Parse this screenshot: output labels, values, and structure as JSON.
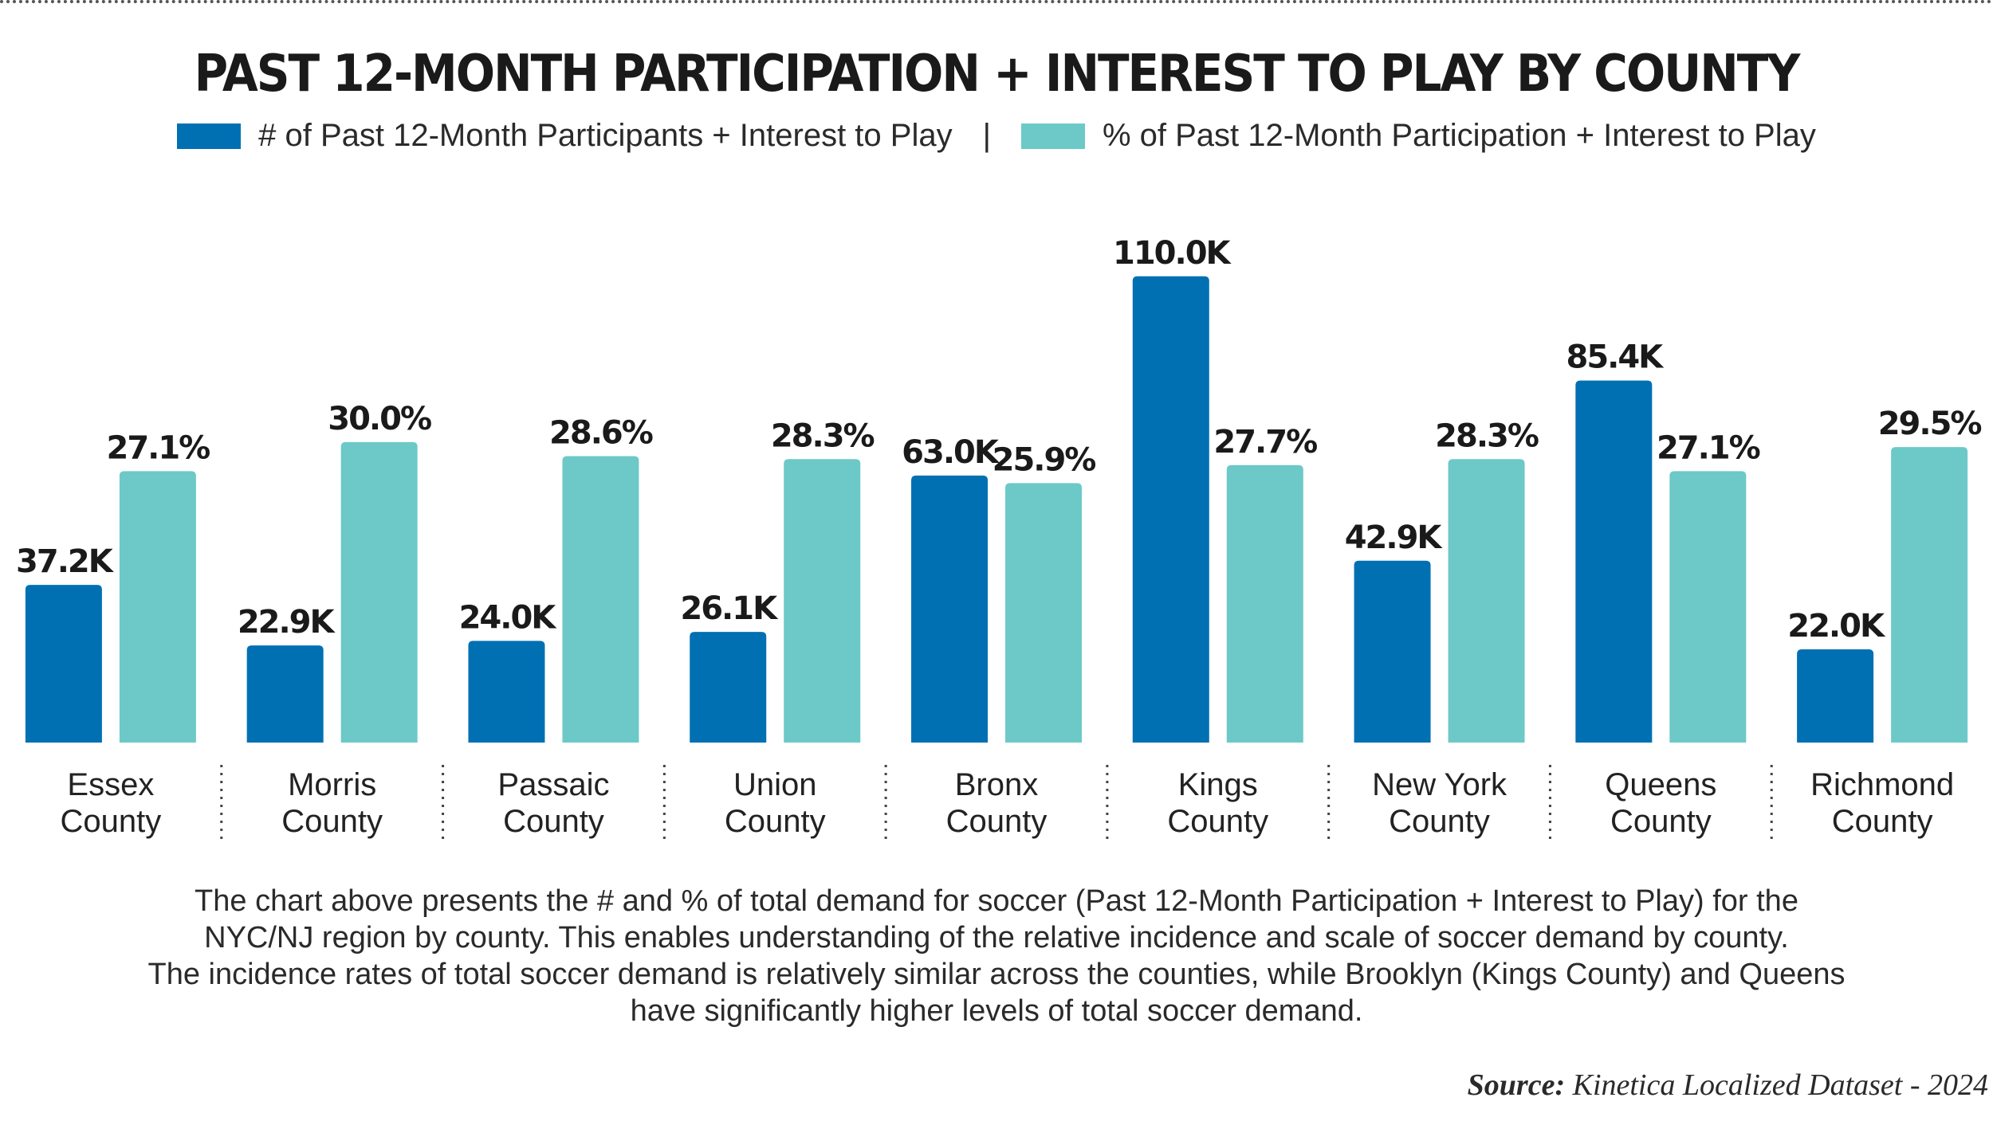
{
  "chart_data": {
    "type": "bar",
    "title": "PAST 12-MONTH PARTICIPATION + INTEREST TO PLAY BY COUNTY",
    "categories": [
      [
        "Essex",
        "County"
      ],
      [
        "Morris",
        "County"
      ],
      [
        "Passaic",
        "County"
      ],
      [
        "Union",
        "County"
      ],
      [
        "Bronx",
        "County"
      ],
      [
        "Kings",
        "County"
      ],
      [
        "New York",
        "County"
      ],
      [
        "Queens",
        "County"
      ],
      [
        "Richmond",
        "County"
      ]
    ],
    "series": [
      {
        "name": "# of Past 12-Month Participants + Interest to Play",
        "values": [
          37.2,
          22.9,
          24.0,
          26.1,
          63.0,
          110.0,
          42.9,
          85.4,
          22.0
        ],
        "labels": [
          "37.2K",
          "22.9K",
          "24.0K",
          "26.1K",
          "63.0K",
          "110.0K",
          "42.9K",
          "85.4K",
          "22.0K"
        ],
        "unit": "thousands",
        "color": "#0070b3"
      },
      {
        "name": "% of Past 12-Month Participation + Interest to Play",
        "values": [
          27.1,
          30.0,
          28.6,
          28.3,
          25.9,
          27.7,
          28.3,
          27.1,
          29.5
        ],
        "labels": [
          "27.1%",
          "30.0%",
          "28.6%",
          "28.3%",
          "25.9%",
          "27.7%",
          "28.3%",
          "27.1%",
          "29.5%"
        ],
        "unit": "percent",
        "color": "#6cc9c8"
      }
    ],
    "legend_separator": "|",
    "legend_position": "top-center",
    "grid": false
  },
  "note_lines": [
    "The chart above presents the # and % of total demand for soccer (Past 12-Month Participation + Interest to Play) for the",
    "NYC/NJ region by county. This enables understanding of the relative incidence and scale of soccer demand by county.",
    "The incidence rates of total soccer demand is relatively similar across the counties, while Brooklyn (Kings County) and Queens",
    "have significantly higher levels of total soccer demand."
  ],
  "source": {
    "label": "Source:",
    "text": "Kinetica Localized Dataset - 2024"
  }
}
